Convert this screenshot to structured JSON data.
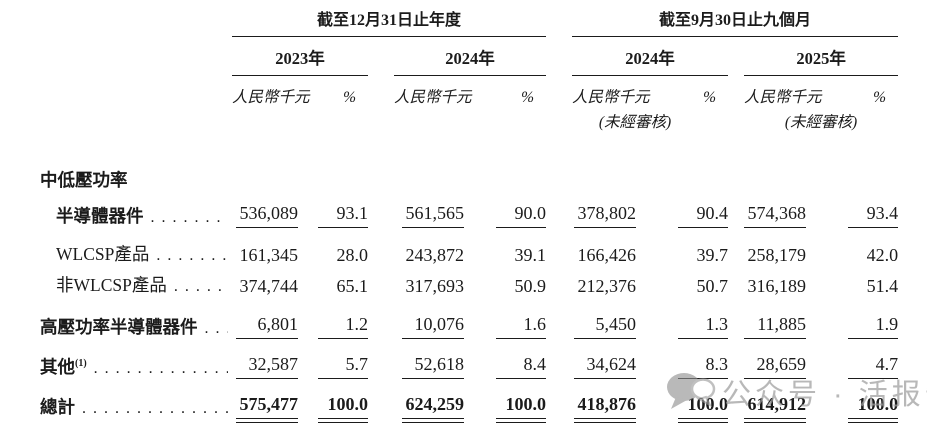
{
  "table": {
    "col_groups": [
      {
        "title": "截至12月31日止年度",
        "years": [
          {
            "label": "2023年",
            "note": ""
          },
          {
            "label": "2024年",
            "note": ""
          }
        ]
      },
      {
        "title": "截至9月30日止九個月",
        "years": [
          {
            "label": "2024年",
            "note": "(未經審核)"
          },
          {
            "label": "2025年",
            "note": "(未經審核)"
          }
        ]
      }
    ],
    "unit_header": {
      "amount": "人民幣千元",
      "percent": "%"
    },
    "rows": [
      {
        "label": "中低壓功率",
        "indent": 1,
        "bold": true,
        "dots": false,
        "rule": "none",
        "values": []
      },
      {
        "label": "半導體器件",
        "indent": 2,
        "bold": true,
        "dots": true,
        "rule": "single",
        "values": [
          "536,089",
          "93.1",
          "561,565",
          "90.0",
          "378,802",
          "90.4",
          "574,368",
          "93.4"
        ]
      },
      {
        "label": "WLCSP產品",
        "indent": 2,
        "bold": false,
        "dots": true,
        "rule": "none",
        "values": [
          "161,345",
          "28.0",
          "243,872",
          "39.1",
          "166,426",
          "39.7",
          "258,179",
          "42.0"
        ]
      },
      {
        "label": "非WLCSP產品",
        "indent": 2,
        "bold": false,
        "dots": true,
        "rule": "none",
        "values": [
          "374,744",
          "65.1",
          "317,693",
          "50.9",
          "212,376",
          "50.7",
          "316,189",
          "51.4"
        ]
      },
      {
        "label": "高壓功率半導體器件",
        "indent": 1,
        "bold": true,
        "dots": true,
        "rule": "single",
        "values": [
          "6,801",
          "1.2",
          "10,076",
          "1.6",
          "5,450",
          "1.3",
          "11,885",
          "1.9"
        ]
      },
      {
        "label": "其他",
        "sup": "(1)",
        "indent": 1,
        "bold": true,
        "dots": true,
        "rule": "single",
        "values": [
          "32,587",
          "5.7",
          "52,618",
          "8.4",
          "34,624",
          "8.3",
          "28,659",
          "4.7"
        ]
      },
      {
        "label": "總計",
        "indent": 1,
        "bold": true,
        "dots": true,
        "rule": "double",
        "values": [
          "575,477",
          "100.0",
          "624,259",
          "100.0",
          "418,876",
          "100.0",
          "614,912",
          "100.0"
        ]
      }
    ]
  },
  "watermark": {
    "icon": "chat-bubbles-icon",
    "text": "公众号 · 活报告"
  },
  "misc": {
    "leader_dots": ". . . . . . . . . . . . . . . . . . . . . . . . . . . . . . . . . . . . . . . ."
  }
}
